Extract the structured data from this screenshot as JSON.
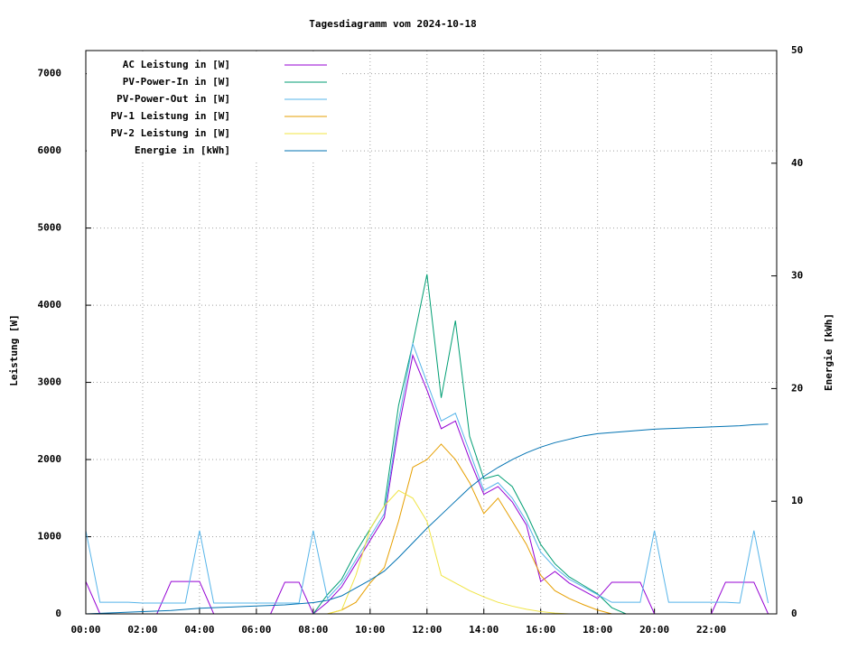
{
  "chart_data": {
    "type": "line",
    "title": "Tagesdiagramm vom 2024-10-18",
    "y_label": "Leistung [W]",
    "y2_label": "Energie [kWh]",
    "x": [
      0,
      0.5,
      1,
      1.5,
      2,
      2.5,
      3,
      3.5,
      4,
      4.5,
      5,
      5.5,
      6,
      6.5,
      7,
      7.5,
      8,
      8.5,
      9,
      9.5,
      10,
      10.5,
      11,
      11.5,
      12,
      12.5,
      13,
      13.5,
      14,
      14.5,
      15,
      15.5,
      16,
      16.5,
      17,
      17.5,
      18,
      18.5,
      19,
      19.5,
      20,
      20.5,
      21,
      21.5,
      22,
      22.5,
      23,
      23.5,
      24
    ],
    "xlim": [
      0,
      24.3
    ],
    "xticks": [
      {
        "value": 0,
        "label": "00:00"
      },
      {
        "value": 2,
        "label": "02:00"
      },
      {
        "value": 4,
        "label": "04:00"
      },
      {
        "value": 6,
        "label": "06:00"
      },
      {
        "value": 8,
        "label": "08:00"
      },
      {
        "value": 10,
        "label": "10:00"
      },
      {
        "value": 12,
        "label": "12:00"
      },
      {
        "value": 14,
        "label": "14:00"
      },
      {
        "value": 16,
        "label": "16:00"
      },
      {
        "value": 18,
        "label": "18:00"
      },
      {
        "value": 20,
        "label": "20:00"
      },
      {
        "value": 22,
        "label": "22:00"
      }
    ],
    "ylim": [
      0,
      7300
    ],
    "yticks": [
      0,
      1000,
      2000,
      3000,
      4000,
      5000,
      6000,
      7000
    ],
    "y2lim": [
      0,
      50
    ],
    "y2ticks": [
      0,
      10,
      20,
      30,
      40,
      50
    ],
    "grid": true,
    "legend": "top-left",
    "series": [
      {
        "name": "AC Leistung in [W]",
        "color": "#9400d3",
        "values": [
          420,
          0,
          0,
          0,
          0,
          0,
          420,
          420,
          420,
          0,
          0,
          0,
          0,
          0,
          410,
          410,
          0,
          150,
          350,
          650,
          950,
          1250,
          2400,
          3350,
          2900,
          2400,
          2500,
          2000,
          1550,
          1650,
          1450,
          1150,
          420,
          550,
          400,
          300,
          200,
          410,
          410,
          410,
          0,
          0,
          0,
          0,
          0,
          410,
          410,
          410,
          0
        ]
      },
      {
        "name": "PV-Power-In in [W]",
        "color": "#009e73",
        "values": [
          0,
          0,
          0,
          0,
          0,
          0,
          0,
          0,
          0,
          0,
          0,
          0,
          0,
          0,
          0,
          0,
          0,
          250,
          450,
          800,
          1100,
          1400,
          2700,
          3500,
          4400,
          2800,
          3800,
          2300,
          1750,
          1800,
          1650,
          1300,
          900,
          650,
          480,
          370,
          260,
          80,
          0,
          0,
          0,
          0,
          0,
          0,
          0,
          0,
          0,
          0,
          0
        ]
      },
      {
        "name": "PV-Power-Out in [W]",
        "color": "#56b4e9",
        "values": [
          1080,
          150,
          150,
          150,
          140,
          140,
          140,
          140,
          1080,
          140,
          140,
          140,
          140,
          140,
          140,
          140,
          1080,
          200,
          400,
          700,
          1000,
          1300,
          2500,
          3500,
          3000,
          2500,
          2600,
          2100,
          1600,
          1700,
          1500,
          1200,
          800,
          600,
          450,
          350,
          250,
          150,
          150,
          150,
          1080,
          150,
          150,
          150,
          150,
          150,
          140,
          1080,
          140
        ]
      },
      {
        "name": "PV-1 Leistung in [W]",
        "color": "#e69f00",
        "values": [
          0,
          0,
          0,
          0,
          0,
          0,
          0,
          0,
          0,
          0,
          0,
          0,
          0,
          0,
          0,
          0,
          0,
          0,
          50,
          150,
          400,
          600,
          1200,
          1900,
          2000,
          2200,
          2000,
          1700,
          1300,
          1500,
          1200,
          900,
          500,
          300,
          200,
          120,
          50,
          0,
          0,
          0,
          0,
          0,
          0,
          0,
          0,
          0,
          0,
          0,
          0
        ]
      },
      {
        "name": "PV-2 Leistung in [W]",
        "color": "#f0e442",
        "values": [
          0,
          0,
          0,
          0,
          0,
          0,
          0,
          0,
          0,
          0,
          0,
          0,
          0,
          0,
          0,
          0,
          0,
          0,
          50,
          500,
          1100,
          1400,
          1600,
          1500,
          1200,
          500,
          400,
          300,
          220,
          150,
          100,
          60,
          30,
          10,
          0,
          0,
          0,
          0,
          0,
          0,
          0,
          0,
          0,
          0,
          0,
          0,
          0,
          0,
          0
        ]
      },
      {
        "name": "Energie in [kWh]",
        "color": "#0072b2",
        "axis": "y2",
        "values": [
          0,
          0.05,
          0.1,
          0.15,
          0.2,
          0.25,
          0.3,
          0.4,
          0.5,
          0.55,
          0.6,
          0.65,
          0.7,
          0.75,
          0.8,
          0.9,
          1.0,
          1.2,
          1.6,
          2.3,
          3.0,
          3.8,
          5.0,
          6.3,
          7.6,
          8.8,
          10.0,
          11.2,
          12.2,
          13.0,
          13.7,
          14.3,
          14.8,
          15.2,
          15.5,
          15.8,
          16.0,
          16.1,
          16.2,
          16.3,
          16.4,
          16.45,
          16.5,
          16.55,
          16.6,
          16.65,
          16.7,
          16.8,
          16.85
        ]
      }
    ]
  }
}
